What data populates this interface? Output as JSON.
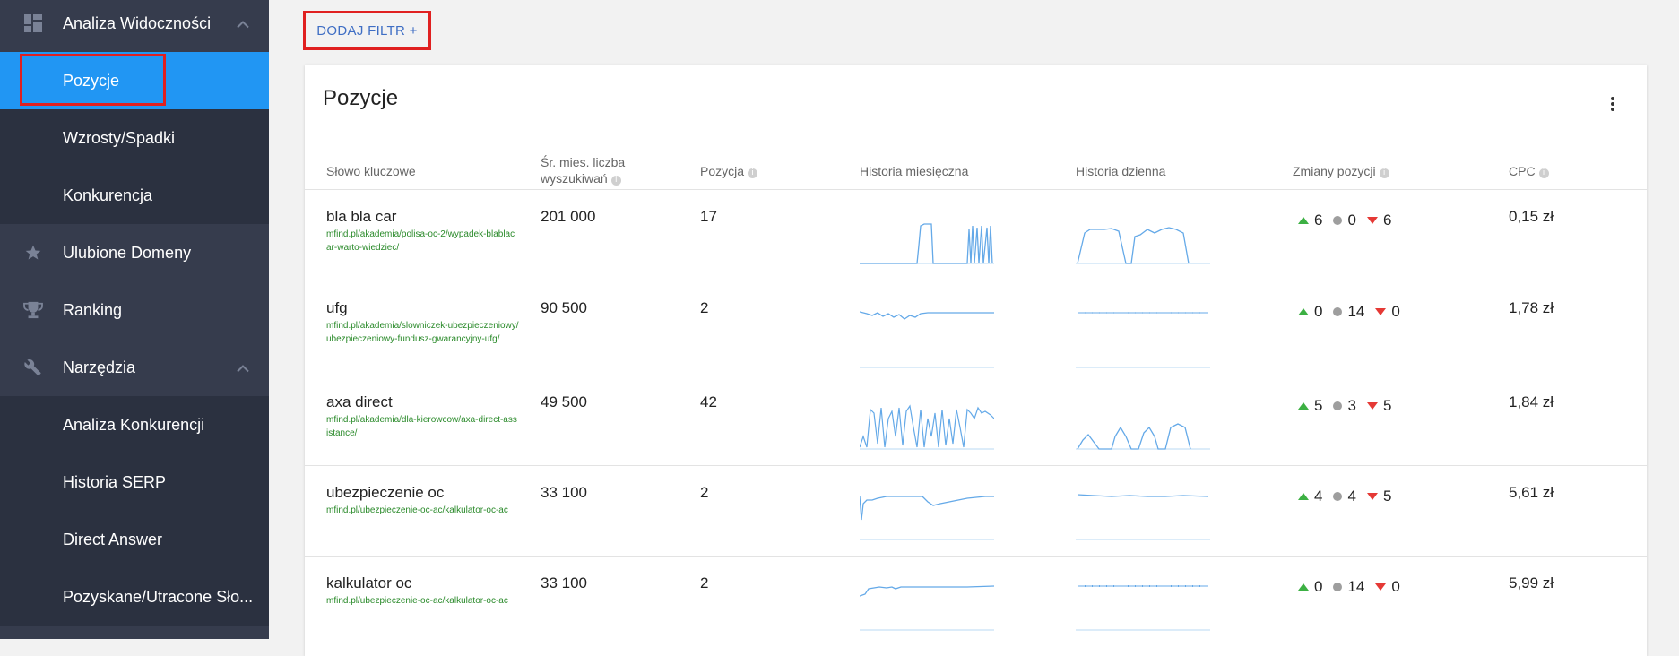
{
  "sidebar": {
    "items": [
      {
        "label": "Analiza Widoczności",
        "icon": "dashboard-icon"
      },
      {
        "label": "Pozycje"
      },
      {
        "label": "Wzrosty/Spadki"
      },
      {
        "label": "Konkurencja"
      },
      {
        "label": "Ulubione Domeny",
        "icon": "star-icon"
      },
      {
        "label": "Ranking",
        "icon": "trophy-icon"
      },
      {
        "label": "Narzędzia",
        "icon": "wrench-icon"
      },
      {
        "label": "Analiza Konkurencji"
      },
      {
        "label": "Historia SERP"
      },
      {
        "label": "Direct Answer"
      },
      {
        "label": "Pozyskane/Utracone Sło..."
      }
    ]
  },
  "toolbar": {
    "filter_label": "DODAJ FILTR +"
  },
  "card": {
    "title": "Pozycje",
    "columns": {
      "keyword": "Słowo kluczowe",
      "volume_line1": "Śr. mies. liczba",
      "volume_line2": "wyszukiwań",
      "position": "Pozycja",
      "monthly": "Historia miesięczna",
      "daily": "Historia dzienna",
      "changes": "Zmiany pozycji",
      "cpc": "CPC"
    },
    "rows": [
      {
        "keyword": "bla bla car",
        "url": "mfind.pl/akademia/polisa-oc-2/wypadek-blablacar-warto-wiedziec/",
        "volume": "201 000",
        "position": "17",
        "up": "6",
        "same": "0",
        "down": "6",
        "cpc": "0,15 zł"
      },
      {
        "keyword": "ufg",
        "url": "mfind.pl/akademia/slowniczek-ubezpieczeniowy/ubezpieczeniowy-fundusz-gwarancyjny-ufg/",
        "volume": "90 500",
        "position": "2",
        "up": "0",
        "same": "14",
        "down": "0",
        "cpc": "1,78 zł"
      },
      {
        "keyword": "axa direct",
        "url": "mfind.pl/akademia/dla-kierowcow/axa-direct-assistance/",
        "volume": "49 500",
        "position": "42",
        "up": "5",
        "same": "3",
        "down": "5",
        "cpc": "1,84 zł"
      },
      {
        "keyword": "ubezpieczenie oc",
        "url": "mfind.pl/ubezpieczenie-oc-ac/kalkulator-oc-ac",
        "volume": "33 100",
        "position": "2",
        "up": "4",
        "same": "4",
        "down": "5",
        "cpc": "5,61 zł"
      },
      {
        "keyword": "kalkulator oc",
        "url": "mfind.pl/ubezpieczenie-oc-ac/kalkulator-oc-ac",
        "volume": "33 100",
        "position": "2",
        "up": "0",
        "same": "14",
        "down": "0",
        "cpc": "5,99 zł"
      }
    ]
  },
  "colors": {
    "accent": "#2196f3",
    "sidebar_bg": "#2b3140",
    "sidebar_parent_bg": "#363c4d",
    "spark": "#64a9e8",
    "highlight": "#e02020",
    "url": "#2a8a2a"
  }
}
